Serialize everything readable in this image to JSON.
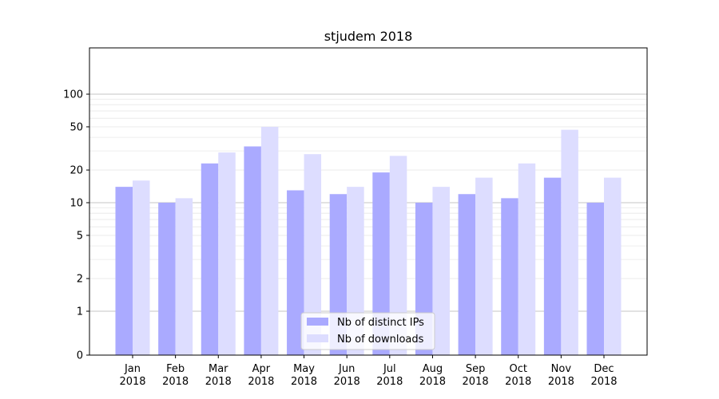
{
  "chart_data": {
    "type": "bar",
    "title": "stjudem 2018",
    "xlabel": "",
    "ylabel": "",
    "y_scale": "symlog",
    "ylim": [
      0,
      120
    ],
    "yticks": [
      0,
      1,
      2,
      5,
      10,
      20,
      50,
      100
    ],
    "ytick_labels": [
      "0",
      "1",
      "2",
      "5",
      "10",
      "20",
      "50",
      "100"
    ],
    "grid": true,
    "legend_position": "bottom-center",
    "categories": [
      {
        "month": "Jan",
        "year": "2018"
      },
      {
        "month": "Feb",
        "year": "2018"
      },
      {
        "month": "Mar",
        "year": "2018"
      },
      {
        "month": "Apr",
        "year": "2018"
      },
      {
        "month": "May",
        "year": "2018"
      },
      {
        "month": "Jun",
        "year": "2018"
      },
      {
        "month": "Jul",
        "year": "2018"
      },
      {
        "month": "Aug",
        "year": "2018"
      },
      {
        "month": "Sep",
        "year": "2018"
      },
      {
        "month": "Oct",
        "year": "2018"
      },
      {
        "month": "Nov",
        "year": "2018"
      },
      {
        "month": "Dec",
        "year": "2018"
      }
    ],
    "series": [
      {
        "name": "Nb of distinct IPs",
        "color": "#aaaaff",
        "values": [
          14,
          10,
          23,
          33,
          13,
          12,
          19,
          10,
          12,
          11,
          17,
          10
        ]
      },
      {
        "name": "Nb of downloads",
        "color": "#ddddff",
        "values": [
          16,
          11,
          29,
          50,
          28,
          14,
          27,
          14,
          17,
          23,
          47,
          17
        ]
      }
    ]
  }
}
